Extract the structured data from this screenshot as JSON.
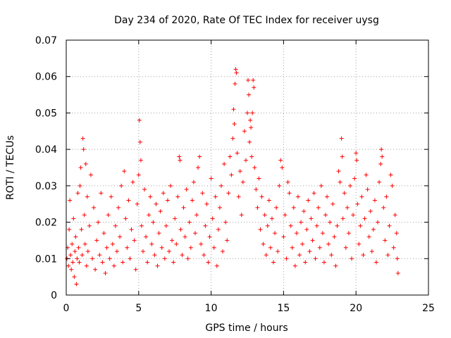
{
  "chart_data": {
    "type": "scatter",
    "title": "Day 234 of 2020, Rate Of TEC Index for receiver uysg",
    "xlabel": "GPS time / hours",
    "ylabel": "ROTI / TECUs",
    "xlim": [
      0,
      25
    ],
    "ylim": [
      0,
      0.07
    ],
    "x_ticks": [
      0,
      5,
      10,
      15,
      20,
      25
    ],
    "y_ticks": [
      0,
      0.01,
      0.02,
      0.03,
      0.04,
      0.05,
      0.06,
      0.07
    ],
    "x_tick_labels": [
      "0",
      "5",
      "10",
      "15",
      "20",
      "25"
    ],
    "y_tick_labels": [
      "0",
      "0.01",
      "0.02",
      "0.03",
      "0.04",
      "0.05",
      "0.06",
      "0.07"
    ],
    "grid": true,
    "marker": "+",
    "color": "#ff0000",
    "series": [
      {
        "points": [
          [
            0.05,
            0.01
          ],
          [
            0.1,
            0.013
          ],
          [
            0.15,
            0.008
          ],
          [
            0.2,
            0.018
          ],
          [
            0.25,
            0.026
          ],
          [
            0.3,
            0.011
          ],
          [
            0.35,
            0.007
          ],
          [
            0.4,
            0.014
          ],
          [
            0.45,
            0.009
          ],
          [
            0.5,
            0.021
          ],
          [
            0.55,
            0.005
          ],
          [
            0.6,
            0.012
          ],
          [
            0.65,
            0.016
          ],
          [
            0.7,
            0.003
          ],
          [
            0.75,
            0.01
          ],
          [
            0.8,
            0.028
          ],
          [
            0.85,
            0.013
          ],
          [
            0.9,
            0.009
          ],
          [
            0.95,
            0.03
          ],
          [
            1.0,
            0.035
          ],
          [
            1.05,
            0.018
          ],
          [
            1.1,
            0.011
          ],
          [
            1.15,
            0.043
          ],
          [
            1.2,
            0.04
          ],
          [
            1.25,
            0.022
          ],
          [
            1.3,
            0.014
          ],
          [
            1.35,
            0.036
          ],
          [
            1.4,
            0.008
          ],
          [
            1.45,
            0.027
          ],
          [
            1.5,
            0.012
          ],
          [
            1.6,
            0.019
          ],
          [
            1.7,
            0.033
          ],
          [
            1.8,
            0.01
          ],
          [
            1.9,
            0.024
          ],
          [
            2.0,
            0.007
          ],
          [
            2.1,
            0.015
          ],
          [
            2.2,
            0.02
          ],
          [
            2.3,
            0.011
          ],
          [
            2.4,
            0.028
          ],
          [
            2.5,
            0.009
          ],
          [
            2.6,
            0.017
          ],
          [
            2.7,
            0.006
          ],
          [
            2.8,
            0.013
          ],
          [
            2.9,
            0.022
          ],
          [
            3.0,
            0.01
          ],
          [
            3.1,
            0.027
          ],
          [
            3.2,
            0.014
          ],
          [
            3.3,
            0.008
          ],
          [
            3.4,
            0.019
          ],
          [
            3.5,
            0.012
          ],
          [
            3.6,
            0.024
          ],
          [
            3.7,
            0.016
          ],
          [
            3.8,
            0.03
          ],
          [
            3.9,
            0.009
          ],
          [
            4.0,
            0.034
          ],
          [
            4.1,
            0.021
          ],
          [
            4.2,
            0.013
          ],
          [
            4.3,
            0.026
          ],
          [
            4.4,
            0.01
          ],
          [
            4.5,
            0.018
          ],
          [
            4.6,
            0.031
          ],
          [
            4.7,
            0.015
          ],
          [
            4.8,
            0.007
          ],
          [
            4.9,
            0.025
          ],
          [
            5.0,
            0.033
          ],
          [
            5.05,
            0.048
          ],
          [
            5.1,
            0.042
          ],
          [
            5.15,
            0.037
          ],
          [
            5.2,
            0.019
          ],
          [
            5.3,
            0.012
          ],
          [
            5.4,
            0.029
          ],
          [
            5.5,
            0.016
          ],
          [
            5.6,
            0.009
          ],
          [
            5.7,
            0.022
          ],
          [
            5.8,
            0.027
          ],
          [
            5.9,
            0.014
          ],
          [
            6.0,
            0.02
          ],
          [
            6.1,
            0.011
          ],
          [
            6.2,
            0.025
          ],
          [
            6.3,
            0.008
          ],
          [
            6.4,
            0.017
          ],
          [
            6.5,
            0.023
          ],
          [
            6.6,
            0.013
          ],
          [
            6.7,
            0.028
          ],
          [
            6.8,
            0.01
          ],
          [
            6.9,
            0.019
          ],
          [
            7.0,
            0.026
          ],
          [
            7.1,
            0.012
          ],
          [
            7.2,
            0.03
          ],
          [
            7.3,
            0.015
          ],
          [
            7.4,
            0.009
          ],
          [
            7.5,
            0.021
          ],
          [
            7.6,
            0.014
          ],
          [
            7.7,
            0.027
          ],
          [
            7.8,
            0.038
          ],
          [
            7.85,
            0.037
          ],
          [
            7.9,
            0.018
          ],
          [
            8.0,
            0.011
          ],
          [
            8.1,
            0.024
          ],
          [
            8.2,
            0.016
          ],
          [
            8.3,
            0.029
          ],
          [
            8.4,
            0.01
          ],
          [
            8.5,
            0.02
          ],
          [
            8.6,
            0.013
          ],
          [
            8.7,
            0.026
          ],
          [
            8.8,
            0.031
          ],
          [
            8.9,
            0.017
          ],
          [
            9.0,
            0.022
          ],
          [
            9.1,
            0.035
          ],
          [
            9.2,
            0.038
          ],
          [
            9.3,
            0.014
          ],
          [
            9.4,
            0.028
          ],
          [
            9.5,
            0.011
          ],
          [
            9.6,
            0.019
          ],
          [
            9.7,
            0.025
          ],
          [
            9.8,
            0.009
          ],
          [
            9.9,
            0.016
          ],
          [
            10.0,
            0.032
          ],
          [
            10.1,
            0.021
          ],
          [
            10.2,
            0.013
          ],
          [
            10.3,
            0.027
          ],
          [
            10.4,
            0.008
          ],
          [
            10.5,
            0.018
          ],
          [
            10.6,
            0.024
          ],
          [
            10.7,
            0.03
          ],
          [
            10.8,
            0.012
          ],
          [
            10.9,
            0.036
          ],
          [
            11.0,
            0.02
          ],
          [
            11.1,
            0.015
          ],
          [
            11.2,
            0.028
          ],
          [
            11.3,
            0.038
          ],
          [
            11.4,
            0.033
          ],
          [
            11.5,
            0.043
          ],
          [
            11.55,
            0.051
          ],
          [
            11.6,
            0.047
          ],
          [
            11.65,
            0.058
          ],
          [
            11.7,
            0.062
          ],
          [
            11.75,
            0.061
          ],
          [
            11.8,
            0.039
          ],
          [
            11.9,
            0.027
          ],
          [
            12.0,
            0.034
          ],
          [
            12.1,
            0.022
          ],
          [
            12.2,
            0.031
          ],
          [
            12.3,
            0.045
          ],
          [
            12.4,
            0.037
          ],
          [
            12.5,
            0.05
          ],
          [
            12.55,
            0.059
          ],
          [
            12.6,
            0.055
          ],
          [
            12.65,
            0.042
          ],
          [
            12.7,
            0.048
          ],
          [
            12.75,
            0.046
          ],
          [
            12.8,
            0.038
          ],
          [
            12.85,
            0.05
          ],
          [
            12.9,
            0.059
          ],
          [
            12.95,
            0.057
          ],
          [
            13.0,
            0.035
          ],
          [
            13.1,
            0.029
          ],
          [
            13.2,
            0.024
          ],
          [
            13.3,
            0.032
          ],
          [
            13.4,
            0.018
          ],
          [
            13.5,
            0.027
          ],
          [
            13.6,
            0.014
          ],
          [
            13.7,
            0.022
          ],
          [
            13.8,
            0.011
          ],
          [
            13.9,
            0.019
          ],
          [
            14.0,
            0.026
          ],
          [
            14.1,
            0.013
          ],
          [
            14.2,
            0.021
          ],
          [
            14.3,
            0.009
          ],
          [
            14.4,
            0.017
          ],
          [
            14.5,
            0.024
          ],
          [
            14.6,
            0.012
          ],
          [
            14.7,
            0.03
          ],
          [
            14.8,
            0.037
          ],
          [
            14.9,
            0.035
          ],
          [
            15.0,
            0.016
          ],
          [
            15.1,
            0.022
          ],
          [
            15.2,
            0.01
          ],
          [
            15.3,
            0.031
          ],
          [
            15.4,
            0.028
          ],
          [
            15.5,
            0.019
          ],
          [
            15.6,
            0.013
          ],
          [
            15.7,
            0.024
          ],
          [
            15.8,
            0.008
          ],
          [
            15.9,
            0.017
          ],
          [
            16.0,
            0.027
          ],
          [
            16.1,
            0.011
          ],
          [
            16.2,
            0.02
          ],
          [
            16.3,
            0.014
          ],
          [
            16.4,
            0.023
          ],
          [
            16.5,
            0.009
          ],
          [
            16.6,
            0.018
          ],
          [
            16.7,
            0.026
          ],
          [
            16.8,
            0.012
          ],
          [
            16.9,
            0.021
          ],
          [
            17.0,
            0.015
          ],
          [
            17.1,
            0.028
          ],
          [
            17.2,
            0.01
          ],
          [
            17.3,
            0.019
          ],
          [
            17.4,
            0.024
          ],
          [
            17.5,
            0.013
          ],
          [
            17.6,
            0.03
          ],
          [
            17.7,
            0.017
          ],
          [
            17.8,
            0.009
          ],
          [
            17.9,
            0.022
          ],
          [
            18.0,
            0.027
          ],
          [
            18.1,
            0.014
          ],
          [
            18.2,
            0.02
          ],
          [
            18.3,
            0.011
          ],
          [
            18.4,
            0.025
          ],
          [
            18.5,
            0.016
          ],
          [
            18.6,
            0.008
          ],
          [
            18.7,
            0.019
          ],
          [
            18.8,
            0.034
          ],
          [
            18.9,
            0.031
          ],
          [
            19.0,
            0.043
          ],
          [
            19.05,
            0.038
          ],
          [
            19.1,
            0.021
          ],
          [
            19.2,
            0.028
          ],
          [
            19.3,
            0.013
          ],
          [
            19.4,
            0.024
          ],
          [
            19.5,
            0.017
          ],
          [
            19.6,
            0.03
          ],
          [
            19.7,
            0.01
          ],
          [
            19.8,
            0.022
          ],
          [
            19.9,
            0.032
          ],
          [
            20.0,
            0.039
          ],
          [
            20.05,
            0.037
          ],
          [
            20.1,
            0.025
          ],
          [
            20.2,
            0.014
          ],
          [
            20.3,
            0.019
          ],
          [
            20.4,
            0.027
          ],
          [
            20.5,
            0.011
          ],
          [
            20.6,
            0.021
          ],
          [
            20.7,
            0.033
          ],
          [
            20.8,
            0.029
          ],
          [
            20.9,
            0.016
          ],
          [
            21.0,
            0.023
          ],
          [
            21.1,
            0.012
          ],
          [
            21.2,
            0.018
          ],
          [
            21.3,
            0.026
          ],
          [
            21.4,
            0.009
          ],
          [
            21.5,
            0.02
          ],
          [
            21.6,
            0.031
          ],
          [
            21.7,
            0.036
          ],
          [
            21.75,
            0.04
          ],
          [
            21.8,
            0.038
          ],
          [
            21.9,
            0.024
          ],
          [
            22.0,
            0.015
          ],
          [
            22.1,
            0.027
          ],
          [
            22.2,
            0.011
          ],
          [
            22.3,
            0.019
          ],
          [
            22.4,
            0.033
          ],
          [
            22.5,
            0.03
          ],
          [
            22.6,
            0.013
          ],
          [
            22.7,
            0.022
          ],
          [
            22.8,
            0.017
          ],
          [
            22.85,
            0.01
          ],
          [
            22.9,
            0.006
          ]
        ]
      }
    ]
  }
}
